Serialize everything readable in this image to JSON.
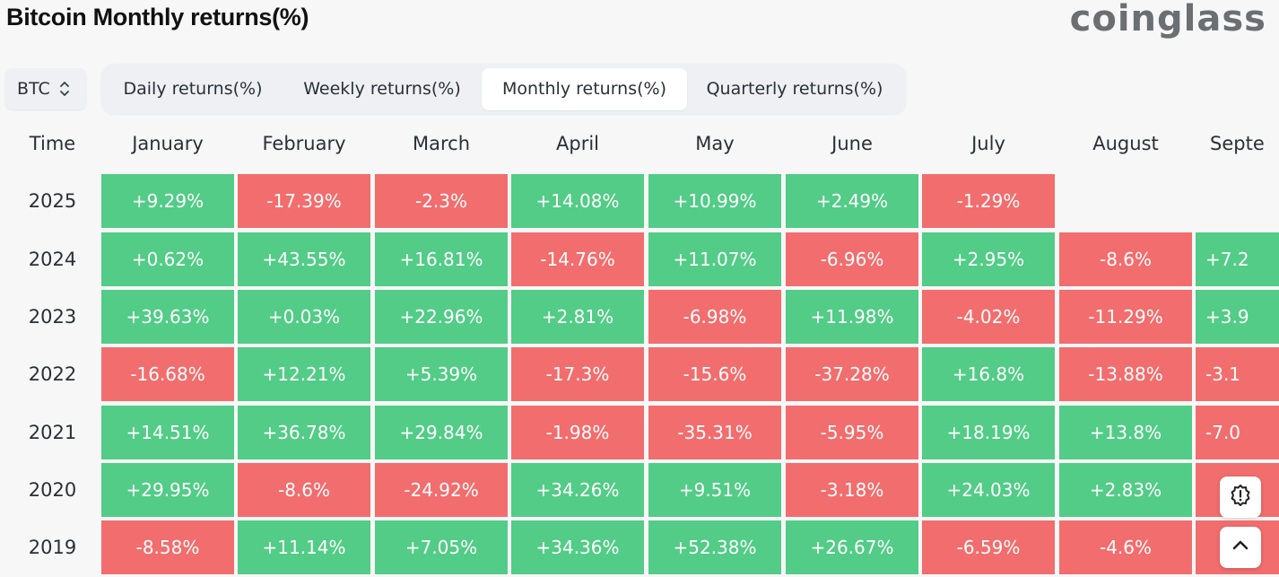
{
  "title": "Bitcoin Monthly returns(%)",
  "brand": "coinglass",
  "coin_select": {
    "value": "BTC"
  },
  "tabs": [
    {
      "label": "Daily returns(%)",
      "active": false
    },
    {
      "label": "Weekly returns(%)",
      "active": false
    },
    {
      "label": "Monthly returns(%)",
      "active": true
    },
    {
      "label": "Quarterly returns(%)",
      "active": false
    }
  ],
  "table": {
    "time_header": "Time",
    "columns": [
      "January",
      "February",
      "March",
      "April",
      "May",
      "June",
      "July",
      "August",
      "Septe"
    ],
    "rows": [
      {
        "year": "2025",
        "values": [
          "+9.29%",
          "-17.39%",
          "-2.3%",
          "+14.08%",
          "+10.99%",
          "+2.49%",
          "-1.29%",
          "",
          ""
        ]
      },
      {
        "year": "2024",
        "values": [
          "+0.62%",
          "+43.55%",
          "+16.81%",
          "-14.76%",
          "+11.07%",
          "-6.96%",
          "+2.95%",
          "-8.6%",
          "+7.2"
        ]
      },
      {
        "year": "2023",
        "values": [
          "+39.63%",
          "+0.03%",
          "+22.96%",
          "+2.81%",
          "-6.98%",
          "+11.98%",
          "-4.02%",
          "-11.29%",
          "+3.9"
        ]
      },
      {
        "year": "2022",
        "values": [
          "-16.68%",
          "+12.21%",
          "+5.39%",
          "-17.3%",
          "-15.6%",
          "-37.28%",
          "+16.8%",
          "-13.88%",
          "-3.1"
        ]
      },
      {
        "year": "2021",
        "values": [
          "+14.51%",
          "+36.78%",
          "+29.84%",
          "-1.98%",
          "-35.31%",
          "-5.95%",
          "+18.19%",
          "+13.8%",
          "-7.0"
        ]
      },
      {
        "year": "2020",
        "values": [
          "+29.95%",
          "-8.6%",
          "-24.92%",
          "+34.26%",
          "+9.51%",
          "-3.18%",
          "+24.03%",
          "+2.83%",
          ""
        ]
      },
      {
        "year": "2019",
        "values": [
          "-8.58%",
          "+11.14%",
          "+7.05%",
          "+34.36%",
          "+52.38%",
          "+26.67%",
          "-6.59%",
          "-4.6%",
          ""
        ]
      }
    ],
    "partial_cells": [
      {
        "row": 5,
        "col": 8,
        "sign": "negative"
      },
      {
        "row": 6,
        "col": 8,
        "sign": "negative"
      }
    ]
  },
  "colors": {
    "positive": "#52cc86",
    "negative": "#f26d6d",
    "background": "#f7f7f8",
    "tab_bg": "#eef0f3",
    "brand": "#6b6e73"
  },
  "floating_buttons": [
    {
      "icon": "settings-alert-icon"
    },
    {
      "icon": "chevron-up-icon"
    }
  ]
}
